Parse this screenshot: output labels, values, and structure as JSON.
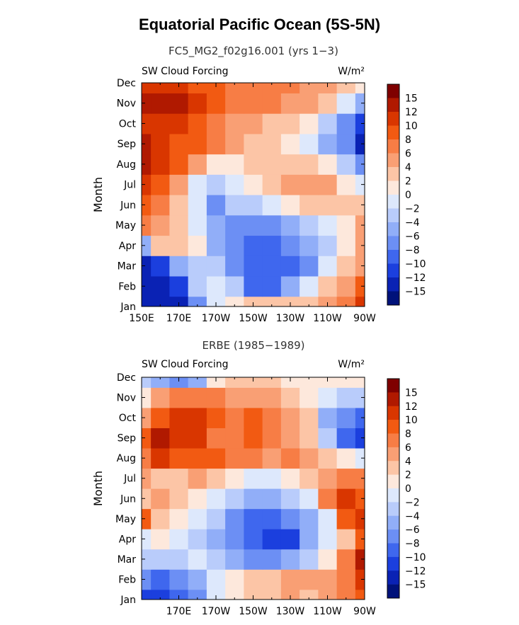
{
  "title": "Equatorial Pacific Ocean (5S-5N)",
  "colorbar": {
    "labels": [
      "15",
      "12",
      "10",
      "8",
      "6",
      "4",
      "2",
      "0",
      "−2",
      "−4",
      "−6",
      "−8",
      "−10",
      "−12",
      "−15"
    ],
    "colors": [
      "#7f0000",
      "#b01900",
      "#d93600",
      "#f25a12",
      "#f77d45",
      "#f99f74",
      "#fcc5a6",
      "#fde8dc",
      "#dde8fc",
      "#b9ccfb",
      "#91aef8",
      "#6c8ff4",
      "#3f67ee",
      "#1b3fde",
      "#0a22b4",
      "#00127a"
    ]
  },
  "chart_data": [
    {
      "type": "heatmap",
      "title": "FC5_MG2_f02g16.001 (yrs 1−3)",
      "left_label": "SW Cloud Forcing",
      "right_label": "W/m²",
      "ylabel": "Month",
      "xlabel": "",
      "x_ticks": [
        "150E",
        "170E",
        "170W",
        "150W",
        "130W",
        "110W",
        "90W"
      ],
      "y_ticks": [
        "Jan",
        "Feb",
        "Mar",
        "Apr",
        "May",
        "Jun",
        "Jul",
        "Aug",
        "Sep",
        "Oct",
        "Nov",
        "Dec"
      ],
      "x_range": [
        "150E",
        "90W"
      ],
      "y_range": [
        "Jan",
        "Dec"
      ],
      "legend_position": "right",
      "grid": false,
      "x_grid": [
        "150E",
        "160E",
        "170E",
        "180",
        "170W",
        "160W",
        "150W",
        "140W",
        "130W",
        "120W",
        "110W",
        "100W",
        "90W"
      ],
      "y_grid": [
        "Jan",
        "Feb",
        "Mar",
        "Apr",
        "May",
        "Jun",
        "Jul",
        "Aug",
        "Sep",
        "Oct",
        "Nov",
        "Dec"
      ],
      "values": [
        [
          -15,
          -15,
          -15,
          -8,
          -2,
          0,
          2,
          2,
          2,
          2,
          4,
          6,
          10
        ],
        [
          -15,
          -15,
          -12,
          -4,
          -2,
          -4,
          -10,
          -10,
          -6,
          -2,
          2,
          4,
          8
        ],
        [
          -13,
          -12,
          -6,
          -4,
          -4,
          -8,
          -10,
          -10,
          -10,
          -8,
          -2,
          2,
          4
        ],
        [
          -6,
          2,
          2,
          0,
          -6,
          -8,
          -10,
          -10,
          -8,
          -6,
          -4,
          0,
          4
        ],
        [
          6,
          4,
          2,
          -2,
          -6,
          -8,
          -8,
          -8,
          -6,
          -4,
          -2,
          0,
          4
        ],
        [
          8,
          6,
          2,
          -2,
          -8,
          -4,
          -4,
          -2,
          0,
          2,
          2,
          2,
          2
        ],
        [
          10,
          8,
          4,
          -2,
          -4,
          -2,
          0,
          2,
          4,
          4,
          4,
          0,
          -2
        ],
        [
          12,
          10,
          8,
          4,
          0,
          0,
          2,
          2,
          2,
          2,
          0,
          -4,
          -8
        ],
        [
          12,
          10,
          8,
          8,
          6,
          4,
          2,
          2,
          0,
          -2,
          -6,
          -8,
          -15
        ],
        [
          10,
          10,
          10,
          8,
          6,
          4,
          4,
          2,
          2,
          0,
          -4,
          -8,
          -12
        ],
        [
          12,
          12,
          12,
          10,
          8,
          6,
          6,
          6,
          4,
          4,
          2,
          -2,
          -6
        ],
        [
          10,
          10,
          10,
          8,
          8,
          6,
          6,
          6,
          6,
          4,
          4,
          2,
          0
        ]
      ]
    },
    {
      "type": "heatmap",
      "title": "ERBE (1985−1989)",
      "left_label": "SW Cloud Forcing",
      "right_label": "W/m²",
      "ylabel": "Month",
      "xlabel": "",
      "x_ticks": [
        "170E",
        "170W",
        "150W",
        "130W",
        "110W",
        "90W"
      ],
      "y_ticks": [
        "Jan",
        "Feb",
        "Mar",
        "Apr",
        "May",
        "Jun",
        "Jul",
        "Aug",
        "Sep",
        "Oct",
        "Nov",
        "Dec"
      ],
      "x_range": [
        "150E",
        "90W"
      ],
      "y_range": [
        "Jan",
        "Dec"
      ],
      "legend_position": "right",
      "grid": false,
      "x_grid": [
        "150E",
        "160E",
        "170E",
        "180",
        "170W",
        "160W",
        "150W",
        "140W",
        "130W",
        "120W",
        "110W",
        "100W",
        "90W"
      ],
      "y_grid": [
        "Jan",
        "Feb",
        "Mar",
        "Apr",
        "May",
        "Jun",
        "Jul",
        "Aug",
        "Sep",
        "Oct",
        "Nov",
        "Dec"
      ],
      "values": [
        [
          -12,
          -12,
          -10,
          -8,
          -2,
          0,
          2,
          2,
          4,
          2,
          4,
          6,
          8
        ],
        [
          -8,
          -10,
          -8,
          -6,
          -2,
          0,
          2,
          2,
          4,
          4,
          4,
          6,
          10
        ],
        [
          -4,
          -4,
          -4,
          -2,
          -4,
          -6,
          -8,
          -8,
          -6,
          -4,
          0,
          6,
          12
        ],
        [
          -2,
          0,
          -2,
          -4,
          -6,
          -8,
          -10,
          -12,
          -12,
          -6,
          -2,
          2,
          8
        ],
        [
          8,
          2,
          0,
          -2,
          -4,
          -8,
          -10,
          -10,
          -8,
          -6,
          -2,
          8,
          10
        ],
        [
          2,
          4,
          2,
          0,
          -2,
          -4,
          -6,
          -6,
          -4,
          -2,
          6,
          10,
          8
        ],
        [
          4,
          2,
          2,
          4,
          2,
          0,
          -2,
          -2,
          0,
          2,
          4,
          6,
          6
        ],
        [
          6,
          10,
          8,
          8,
          8,
          6,
          6,
          4,
          6,
          4,
          2,
          0,
          -2
        ],
        [
          8,
          12,
          10,
          10,
          6,
          6,
          8,
          6,
          4,
          2,
          -4,
          -10,
          -12
        ],
        [
          4,
          8,
          10,
          10,
          8,
          6,
          8,
          6,
          4,
          2,
          -6,
          -8,
          -10
        ],
        [
          0,
          4,
          6,
          6,
          6,
          4,
          4,
          4,
          2,
          0,
          -2,
          -4,
          -4
        ],
        [
          -4,
          -6,
          -8,
          -6,
          0,
          2,
          2,
          2,
          0,
          0,
          0,
          0,
          0
        ]
      ]
    }
  ]
}
